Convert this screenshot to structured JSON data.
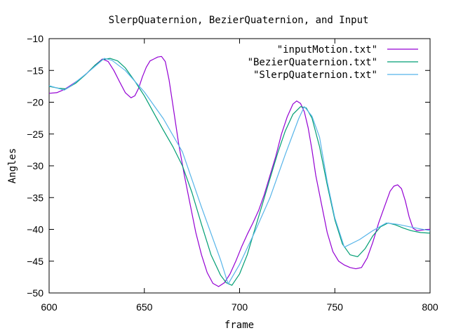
{
  "chart_data": {
    "type": "line",
    "title": "SlerpQuaternion, BezierQuaternion, and Input",
    "xlabel": "frame",
    "ylabel": "Angles",
    "xlim": [
      600,
      800
    ],
    "ylim": [
      -50,
      -10
    ],
    "xticks": [
      600,
      650,
      700,
      750,
      800
    ],
    "yticks": [
      -50,
      -45,
      -40,
      -35,
      -30,
      -25,
      -20,
      -15,
      -10
    ],
    "grid": false,
    "legend_position": "top-right",
    "series": [
      {
        "name": "\"inputMotion.txt\"",
        "color": "#9400d3",
        "x": [
          600,
          604,
          608,
          612,
          616,
          620,
          624,
          628,
          631,
          634,
          637,
          640,
          643,
          645,
          647,
          649,
          651,
          653,
          655,
          657,
          659,
          661,
          663,
          665,
          668,
          671,
          674,
          677,
          680,
          683,
          686,
          689,
          692,
          695,
          698,
          701,
          704,
          707,
          710,
          713,
          716,
          719,
          722,
          725,
          728,
          730,
          732,
          734,
          736,
          738,
          740,
          743,
          746,
          749,
          752,
          755,
          758,
          761,
          764,
          767,
          770,
          773,
          776,
          779,
          781,
          783,
          785,
          787,
          789,
          791,
          793,
          796,
          799,
          800
        ],
        "y": [
          -18.6,
          -18.5,
          -18.0,
          -17.2,
          -16.4,
          -15.4,
          -14.2,
          -13.2,
          -13.6,
          -15.0,
          -16.8,
          -18.5,
          -19.3,
          -19.0,
          -17.8,
          -16.0,
          -14.5,
          -13.5,
          -13.2,
          -12.9,
          -12.8,
          -13.6,
          -16.5,
          -20.5,
          -26.5,
          -31.5,
          -36.0,
          -40.5,
          -44.0,
          -46.8,
          -48.5,
          -49.0,
          -48.4,
          -47.0,
          -45.0,
          -42.8,
          -40.8,
          -39.0,
          -37.0,
          -34.5,
          -31.5,
          -28.5,
          -25.0,
          -22.3,
          -20.3,
          -19.8,
          -20.2,
          -21.5,
          -24.0,
          -27.5,
          -31.5,
          -36.0,
          -40.5,
          -43.5,
          -45.0,
          -45.6,
          -46.0,
          -46.2,
          -46.0,
          -44.5,
          -42.0,
          -39.0,
          -36.5,
          -34.0,
          -33.2,
          -33.0,
          -33.6,
          -35.5,
          -38.0,
          -39.8,
          -40.2,
          -40.1,
          -40.0,
          -40.0
        ]
      },
      {
        "name": "\"BezierQuaternion.txt\"",
        "color": "#009e73",
        "x": [
          600,
          605,
          609,
          614,
          619,
          624,
          628,
          632,
          636,
          640,
          645,
          650,
          655,
          660,
          665,
          670,
          675,
          680,
          685,
          690,
          693,
          696,
          700,
          704,
          708,
          712,
          716,
          720,
          724,
          728,
          732,
          735,
          738,
          742,
          746,
          750,
          754,
          758,
          762,
          766,
          770,
          774,
          778,
          782,
          786,
          790,
          795,
          800
        ],
        "y": [
          -17.5,
          -17.8,
          -17.9,
          -17.0,
          -15.7,
          -14.2,
          -13.3,
          -13.1,
          -13.5,
          -14.6,
          -16.7,
          -19.0,
          -21.7,
          -24.4,
          -27.0,
          -30.0,
          -34.2,
          -39.2,
          -44.0,
          -47.2,
          -48.4,
          -48.8,
          -47.0,
          -44.0,
          -40.0,
          -36.0,
          -32.0,
          -28.0,
          -24.5,
          -21.9,
          -20.7,
          -20.9,
          -22.5,
          -27.0,
          -33.0,
          -38.5,
          -42.3,
          -44.0,
          -44.3,
          -43.0,
          -41.0,
          -39.6,
          -39.0,
          -39.3,
          -39.8,
          -40.2,
          -40.5,
          -40.6
        ]
      },
      {
        "name": "\"SlerpQuaternion.txt\"",
        "color": "#56b4e9",
        "x": [
          600,
          608,
          612,
          620,
          629,
          633,
          640,
          650,
          660,
          670,
          680,
          690,
          694,
          700,
          708,
          716,
          724,
          731,
          734,
          738,
          742,
          746,
          750,
          755,
          763,
          770,
          777,
          783,
          791,
          800
        ],
        "y": [
          -17.4,
          -18.1,
          -17.3,
          -15.4,
          -13.1,
          -13.4,
          -15.0,
          -18.4,
          -22.6,
          -27.8,
          -36.5,
          -44.8,
          -48.6,
          -45.5,
          -40.4,
          -35.0,
          -28.2,
          -22.6,
          -20.7,
          -22.2,
          -25.5,
          -32.5,
          -38.2,
          -42.8,
          -41.6,
          -40.2,
          -39.0,
          -39.2,
          -39.7,
          -40.2
        ]
      }
    ]
  }
}
